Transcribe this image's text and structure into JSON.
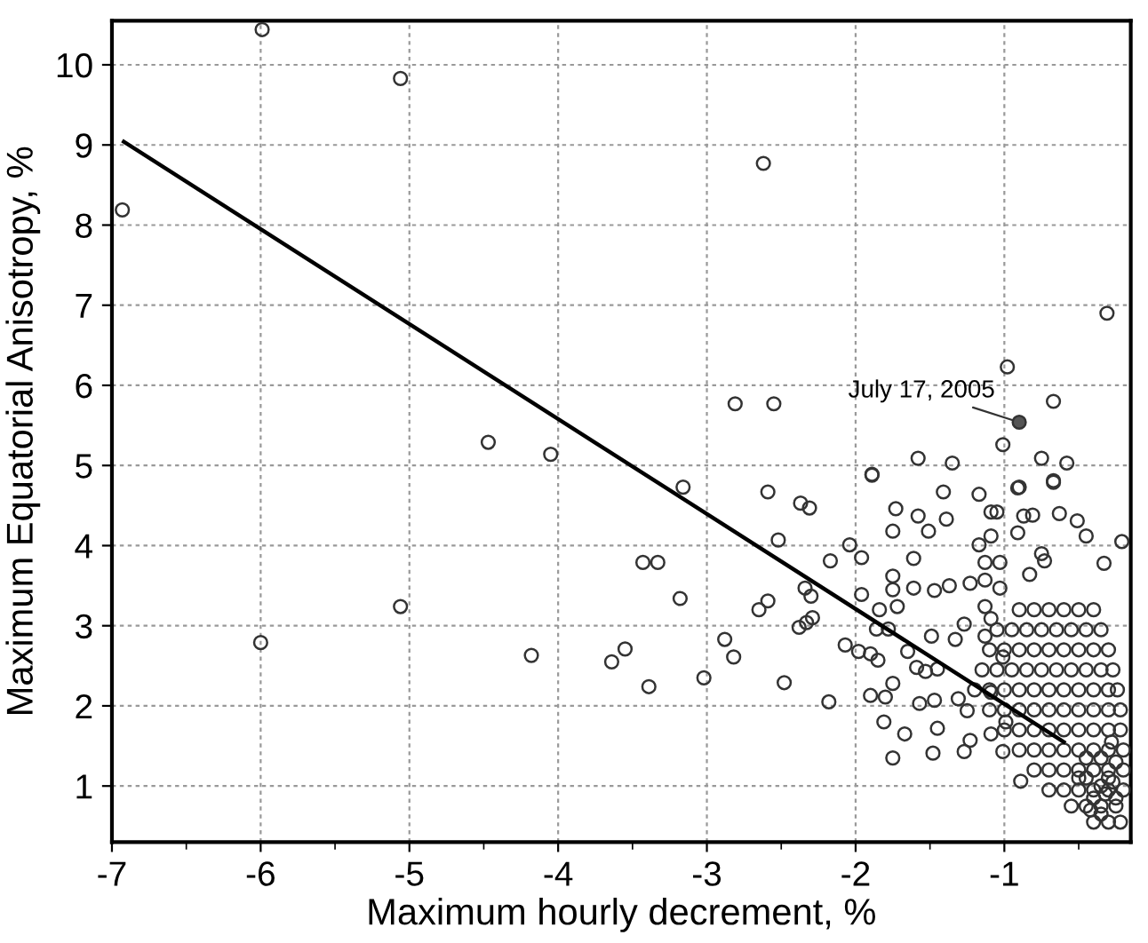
{
  "chart_data": {
    "type": "scatter",
    "xlabel": "Maximum hourly decrement, %",
    "ylabel": "Maximum Equatorial Anisotropy, %",
    "xlim": [
      -7,
      -0.15
    ],
    "ylim": [
      0.3,
      10.55
    ],
    "xticks": [
      -7,
      {
        "value": -6.5,
        "label": null
      },
      -6,
      {
        "value": -5.5,
        "label": null
      },
      -5,
      {
        "value": -4.5,
        "label": null
      },
      -4,
      {
        "value": -3.5,
        "label": null
      },
      -3,
      {
        "value": -2.5,
        "label": null
      },
      -2,
      {
        "value": -1.5,
        "label": null
      },
      -1,
      {
        "value": -0.5,
        "label": null
      }
    ],
    "yticks": [
      1,
      2,
      3,
      4,
      5,
      6,
      7,
      8,
      9,
      10
    ],
    "grid": true,
    "marker": "circle",
    "annotations": [
      {
        "text": "July 17, 2005",
        "x": -0.9,
        "y": 5.54
      }
    ],
    "series": [
      {
        "color": "#333333",
        "x": [
          -6.93,
          -5.99,
          -5.06,
          -4.47,
          -4.05,
          -6.0,
          -5.06,
          -4.18,
          -2.62,
          -0.31,
          -0.98,
          -2.81,
          -2.55,
          -0.67,
          -1.01,
          -1.58,
          -1.35,
          -0.75,
          -0.58,
          -1.89,
          -0.67,
          -0.9,
          -3.16,
          -3.64,
          -3.55,
          -3.39,
          -3.43,
          -3.33,
          -3.18,
          -3.02,
          -2.88,
          -2.82,
          -2.65,
          -2.59,
          -2.59,
          -2.52,
          -2.48,
          -2.37,
          -2.31,
          -2.34,
          -2.3,
          -2.38,
          -2.33,
          -2.29,
          -2.18,
          -2.17,
          -2.04,
          -2.07,
          -1.96,
          -1.96,
          -1.98,
          -1.9,
          -1.85,
          -1.89,
          -1.9,
          -1.8,
          -1.81,
          -1.75,
          -1.67,
          -1.75,
          -1.86,
          -1.78,
          -1.84,
          -1.72,
          -1.75,
          -1.73,
          -1.75,
          -1.75,
          -1.61,
          -1.61,
          -1.58,
          -1.51,
          -1.57,
          -1.47,
          -1.48,
          -1.41,
          -1.39,
          -1.65,
          -1.59,
          -1.53,
          -1.47,
          -1.37,
          -1.49,
          -1.45,
          -1.45,
          -1.33,
          -1.27,
          -1.31,
          -1.25,
          -1.27,
          -1.23,
          -1.17,
          -1.09,
          -1.05,
          -1.23,
          -1.13,
          -1.03,
          -1.17,
          -1.13,
          -1.03,
          -1.09,
          -1.13,
          -1.09,
          -1.13,
          -1.01,
          -1.09,
          -0.99,
          -1.09,
          -1.01,
          -0.91,
          -0.87,
          -0.91,
          -0.81,
          -0.83,
          -0.75,
          -0.73,
          -0.67,
          -0.63,
          -0.51,
          -0.45,
          -0.21,
          -0.33,
          -0.89,
          -0.9,
          -0.8,
          -0.7,
          -0.6,
          -0.5,
          -0.4,
          -1.05,
          -0.95,
          -0.85,
          -0.75,
          -0.65,
          -0.55,
          -0.45,
          -0.35,
          -1.1,
          -1.0,
          -0.9,
          -0.8,
          -0.7,
          -0.6,
          -0.5,
          -0.4,
          -0.3,
          -1.15,
          -1.05,
          -0.95,
          -0.85,
          -0.75,
          -0.65,
          -0.55,
          -0.45,
          -0.35,
          -0.27,
          -1.2,
          -1.1,
          -1.0,
          -0.9,
          -0.8,
          -0.7,
          -0.6,
          -0.5,
          -0.4,
          -0.3,
          -0.24,
          -1.1,
          -1.0,
          -0.9,
          -0.8,
          -0.7,
          -0.6,
          -0.5,
          -0.4,
          -0.3,
          -0.22,
          -1.0,
          -0.9,
          -0.8,
          -0.7,
          -0.6,
          -0.5,
          -0.4,
          -0.3,
          -0.22,
          -0.9,
          -0.8,
          -0.7,
          -0.6,
          -0.5,
          -0.4,
          -0.3,
          -0.2,
          -0.8,
          -0.7,
          -0.6,
          -0.5,
          -0.4,
          -0.3,
          -0.2,
          -0.7,
          -0.6,
          -0.5,
          -0.4,
          -0.3,
          -0.2,
          -0.55,
          -0.45,
          -0.35,
          -0.25,
          -0.4,
          -0.3,
          -0.22,
          -0.45,
          -0.35,
          -0.25,
          -0.35,
          -0.45,
          -0.25,
          -0.35,
          -0.28,
          -0.4,
          -0.3,
          -0.5,
          -0.32,
          -0.27,
          -0.42
        ],
        "values": [
          8.19,
          10.44,
          9.83,
          5.29,
          5.14,
          2.79,
          3.24,
          2.63,
          8.77,
          6.9,
          6.23,
          5.77,
          5.77,
          5.8,
          5.26,
          5.09,
          5.03,
          5.09,
          5.03,
          4.88,
          4.81,
          4.73,
          4.73,
          2.55,
          2.71,
          2.24,
          3.79,
          3.79,
          3.34,
          2.35,
          2.83,
          2.61,
          3.2,
          3.31,
          4.67,
          4.07,
          2.29,
          4.53,
          4.47,
          3.47,
          3.37,
          2.98,
          3.04,
          3.1,
          2.05,
          3.81,
          4.01,
          2.76,
          3.85,
          3.39,
          2.68,
          2.65,
          2.57,
          4.89,
          2.13,
          2.11,
          1.8,
          1.35,
          1.65,
          2.28,
          2.96,
          2.96,
          3.2,
          3.24,
          4.18,
          4.46,
          3.62,
          3.45,
          3.84,
          3.47,
          4.37,
          4.18,
          2.03,
          2.07,
          1.41,
          4.67,
          4.33,
          2.68,
          2.48,
          2.43,
          3.44,
          3.5,
          2.87,
          2.46,
          1.72,
          2.83,
          3.02,
          2.09,
          1.94,
          1.43,
          1.57,
          4.64,
          4.42,
          4.42,
          3.53,
          3.57,
          3.47,
          4.01,
          3.79,
          3.79,
          4.12,
          3.24,
          3.09,
          2.87,
          2.61,
          2.17,
          1.8,
          1.65,
          1.43,
          4.72,
          4.37,
          4.16,
          4.38,
          3.64,
          3.9,
          3.81,
          4.79,
          4.4,
          4.31,
          4.12,
          4.05,
          3.78,
          1.06,
          3.2,
          3.2,
          3.2,
          3.2,
          3.2,
          3.2,
          2.95,
          2.95,
          2.95,
          2.95,
          2.95,
          2.95,
          2.95,
          2.95,
          2.7,
          2.7,
          2.7,
          2.7,
          2.7,
          2.7,
          2.7,
          2.7,
          2.7,
          2.45,
          2.45,
          2.45,
          2.45,
          2.45,
          2.45,
          2.45,
          2.45,
          2.45,
          2.45,
          2.2,
          2.2,
          2.2,
          2.2,
          2.2,
          2.2,
          2.2,
          2.2,
          2.2,
          2.2,
          2.2,
          1.95,
          1.95,
          1.95,
          1.95,
          1.95,
          1.95,
          1.95,
          1.95,
          1.95,
          1.95,
          1.7,
          1.7,
          1.7,
          1.7,
          1.7,
          1.7,
          1.7,
          1.7,
          1.7,
          1.45,
          1.45,
          1.45,
          1.45,
          1.45,
          1.45,
          1.45,
          1.45,
          1.2,
          1.2,
          1.2,
          1.2,
          1.2,
          1.2,
          1.2,
          0.95,
          0.95,
          0.95,
          0.95,
          0.95,
          0.95,
          0.75,
          0.75,
          0.75,
          0.75,
          0.55,
          0.55,
          0.55,
          1.1,
          1.0,
          1.3,
          1.35,
          1.35,
          0.85,
          0.65,
          1.55,
          0.85,
          1.1,
          1.1,
          0.9,
          1.05,
          0.7
        ]
      },
      {
        "type": "line",
        "color": "#000000",
        "marker": "none",
        "x": [
          -6.92,
          -0.6
        ],
        "values": [
          9.04,
          1.55
        ]
      }
    ]
  }
}
